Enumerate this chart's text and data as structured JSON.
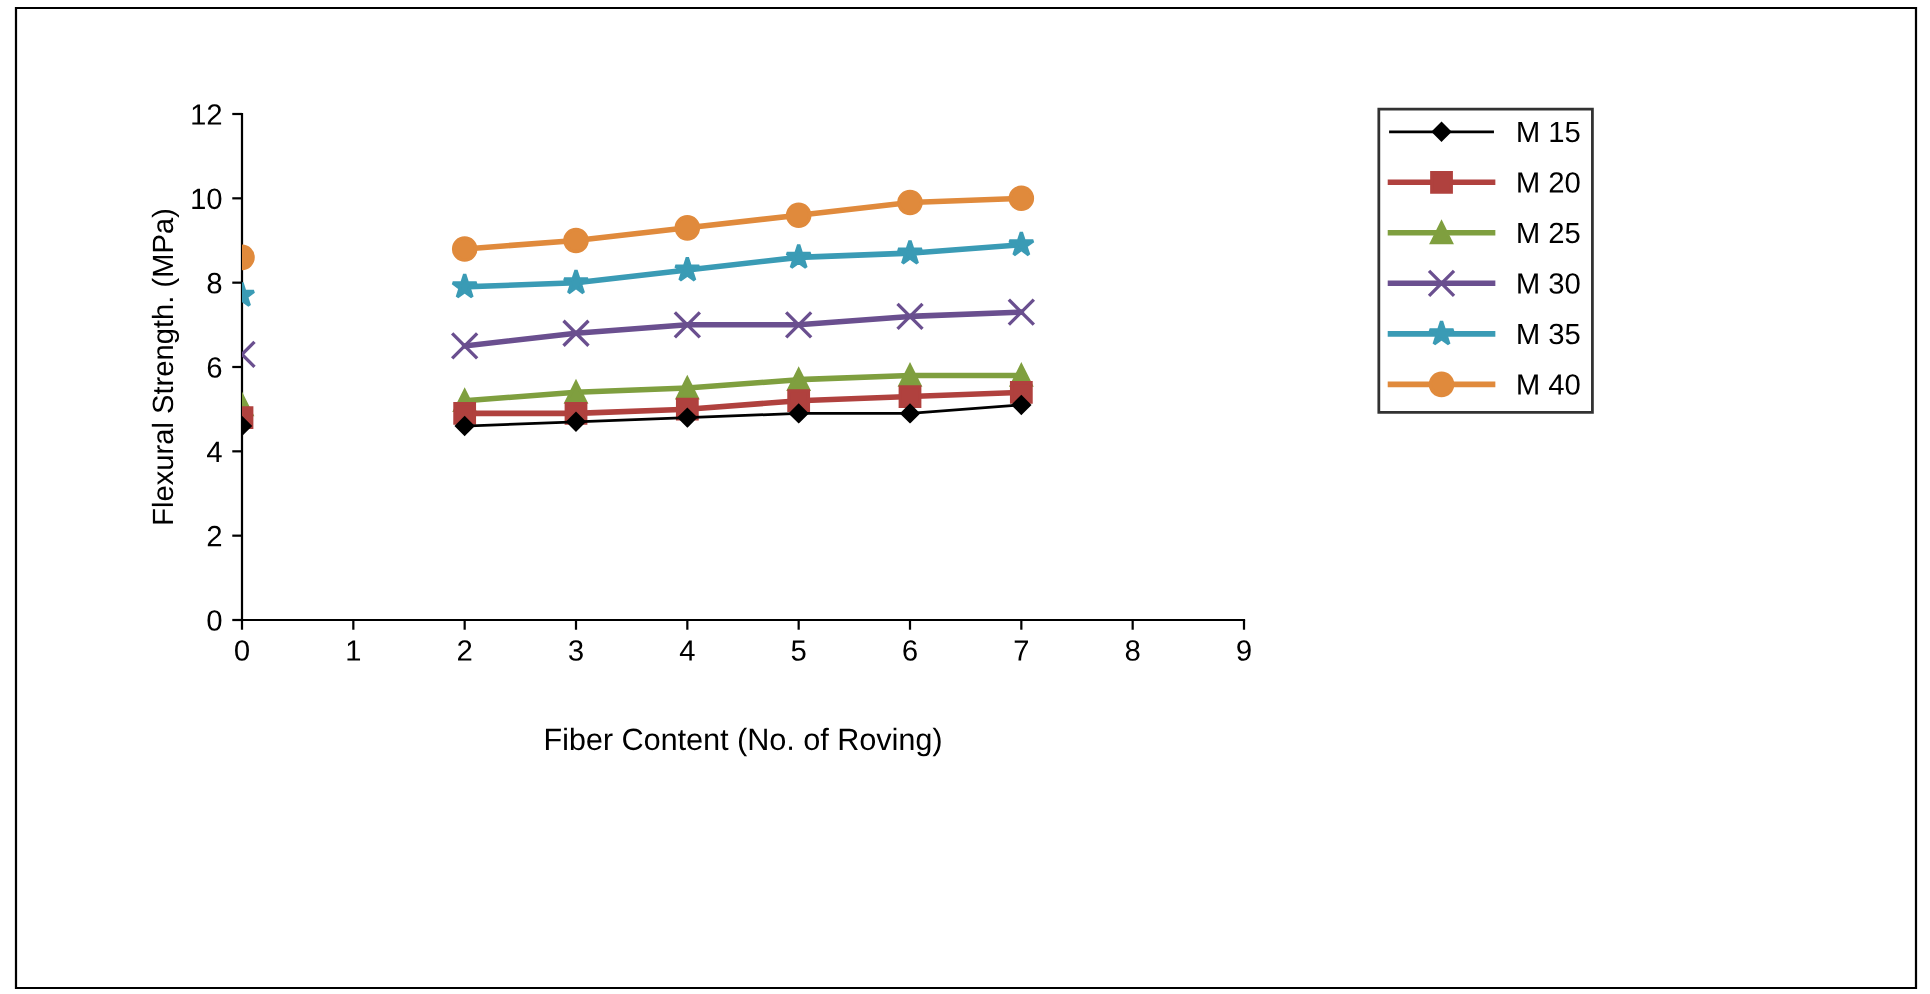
{
  "chart_data": {
    "type": "line",
    "xlabel": "Fiber Content (No. of Roving)",
    "ylabel": "Flexural Strength. (MPa)",
    "x": [
      0,
      1,
      2,
      3,
      4,
      5,
      6,
      7
    ],
    "xlim": [
      0,
      9
    ],
    "xticks": [
      0,
      1,
      2,
      3,
      4,
      5,
      6,
      7,
      8,
      9
    ],
    "ylim": [
      0,
      12
    ],
    "yticks": [
      0,
      2,
      4,
      6,
      8,
      10,
      12
    ],
    "grid": false,
    "legend": "right",
    "line_style": "solid",
    "series": [
      {
        "name": "M 15",
        "color": "#000000",
        "marker": "diamond",
        "values": [
          4.6,
          null,
          4.6,
          4.7,
          4.8,
          4.9,
          4.9,
          5.1
        ]
      },
      {
        "name": "M 20",
        "color": "#b0413e",
        "marker": "square",
        "values": [
          4.8,
          null,
          4.9,
          4.9,
          5.0,
          5.2,
          5.3,
          5.4
        ]
      },
      {
        "name": "M 25",
        "color": "#7f9f3f",
        "marker": "triangle",
        "values": [
          5.1,
          null,
          5.2,
          5.4,
          5.5,
          5.7,
          5.8,
          5.8
        ]
      },
      {
        "name": "M 30",
        "color": "#6a4f8f",
        "marker": "cross",
        "values": [
          6.3,
          null,
          6.5,
          6.8,
          7.0,
          7.0,
          7.2,
          7.3
        ]
      },
      {
        "name": "M 35",
        "color": "#3a9bb5",
        "marker": "star",
        "values": [
          7.7,
          null,
          7.9,
          8.0,
          8.3,
          8.6,
          8.7,
          8.9
        ]
      },
      {
        "name": "M 40",
        "color": "#e08a3c",
        "marker": "circle",
        "values": [
          8.6,
          null,
          8.8,
          9.0,
          9.3,
          9.6,
          9.9,
          10.0
        ]
      }
    ]
  }
}
